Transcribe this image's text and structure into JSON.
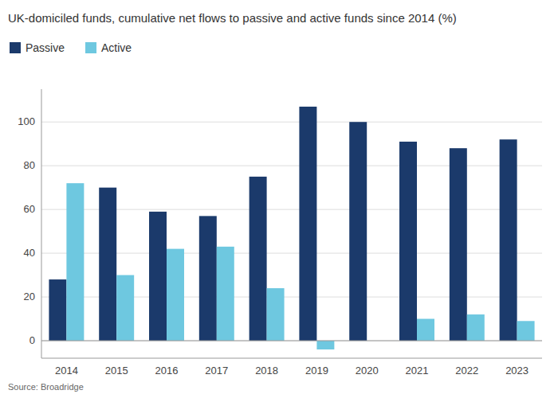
{
  "chart_data": {
    "type": "bar",
    "title": "UK-domiciled funds, cumulative net flows to passive and active funds since 2014 (%)",
    "categories": [
      "2014",
      "2015",
      "2016",
      "2017",
      "2018",
      "2019",
      "2020",
      "2021",
      "2022",
      "2023"
    ],
    "series": [
      {
        "name": "Passive",
        "color": "#1b3a6b",
        "values": [
          28,
          70,
          59,
          57,
          75,
          107,
          100,
          91,
          88,
          92
        ]
      },
      {
        "name": "Active",
        "color": "#6ec8e0",
        "values": [
          72,
          30,
          42,
          43,
          24,
          -4,
          0,
          10,
          12,
          9
        ]
      }
    ],
    "ylim": [
      -8,
      115
    ],
    "yticks": [
      0,
      20,
      40,
      60,
      80,
      100
    ],
    "grid": true,
    "legend": "upper left",
    "annotations": [
      "Source: Broadridge"
    ]
  }
}
